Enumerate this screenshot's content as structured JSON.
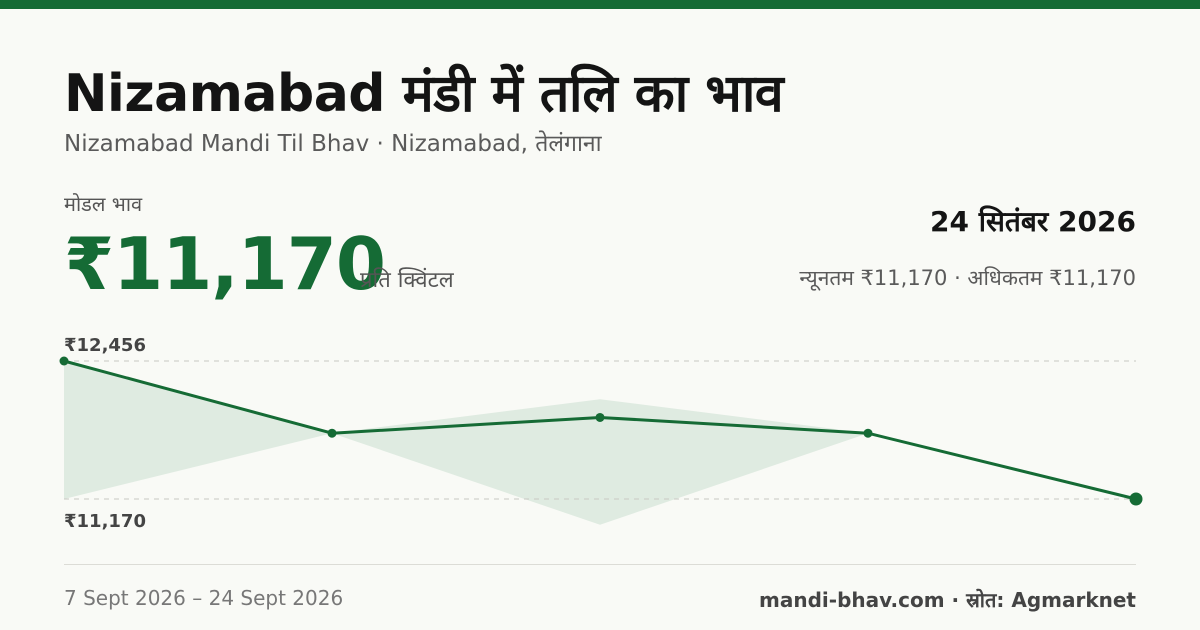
{
  "header": {
    "title": "Nizamabad मंडी में तलि का भाव",
    "subtitle": "Nizamabad Mandi Til Bhav · Nizamabad, तेलंगाना"
  },
  "summary": {
    "modal_label": "मोडल भाव",
    "modal_price": "₹11,170",
    "unit": "प्रति क्विंटल",
    "date": "24 सितंबर 2026",
    "range": "न्यूनतम ₹11,170 · अधिकतम ₹11,170"
  },
  "colors": {
    "accent": "#156b35",
    "band": "#d6e6d9"
  },
  "chart_data": {
    "type": "line",
    "y_ref_labels": [
      "₹12,456",
      "₹11,170"
    ],
    "y_ref_values": [
      12456,
      11170
    ],
    "ylim": [
      11170,
      12456
    ],
    "points": [
      {
        "value": 12456,
        "min": 11170,
        "max": 12456
      },
      {
        "value": 11783,
        "min": 11783,
        "max": 11783
      },
      {
        "value": 11930,
        "min": 10930,
        "max": 12100
      },
      {
        "value": 11783,
        "min": 11783,
        "max": 11783
      },
      {
        "value": 11170,
        "min": 11170,
        "max": 11170
      }
    ],
    "grid": true,
    "legend": "none"
  },
  "footer": {
    "date_range": "7 Sept 2026 – 24 Sept 2026",
    "source": "mandi-bhav.com · स्रोत: Agmarknet"
  }
}
